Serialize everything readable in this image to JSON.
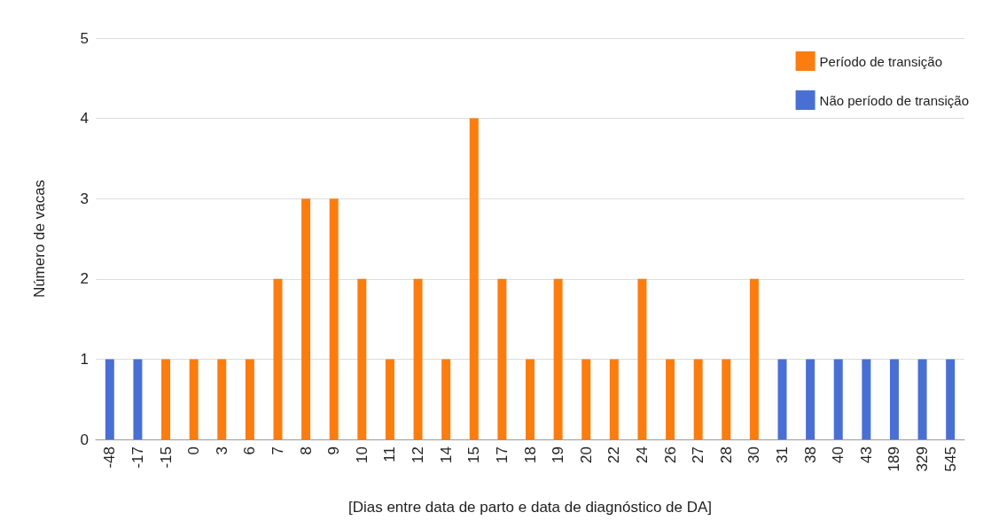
{
  "chart_data": {
    "type": "bar",
    "xlabel": "[Dias entre data de parto e data de diagnóstico de DA]",
    "ylabel": "Número de vacas",
    "categories": [
      "-48",
      "-17",
      "-15",
      "0",
      "3",
      "6",
      "7",
      "8",
      "9",
      "10",
      "11",
      "12",
      "14",
      "15",
      "17",
      "18",
      "19",
      "20",
      "22",
      "24",
      "26",
      "27",
      "28",
      "30",
      "31",
      "38",
      "40",
      "43",
      "189",
      "329",
      "545"
    ],
    "series": [
      {
        "name": "Período de transição",
        "color": "#fb7d10",
        "values": [
          null,
          null,
          1,
          1,
          1,
          1,
          2,
          3,
          3,
          2,
          1,
          2,
          1,
          4,
          2,
          1,
          2,
          1,
          1,
          2,
          1,
          1,
          1,
          2,
          null,
          null,
          null,
          null,
          null,
          null,
          null
        ]
      },
      {
        "name": "Não período de transição",
        "color": "#4a6fd4",
        "values": [
          1,
          1,
          null,
          null,
          null,
          null,
          null,
          null,
          null,
          null,
          null,
          null,
          null,
          null,
          null,
          null,
          null,
          null,
          null,
          null,
          null,
          null,
          null,
          null,
          1,
          1,
          1,
          1,
          1,
          1,
          1
        ]
      }
    ],
    "stacked": true,
    "ylim": [
      0,
      5
    ],
    "yticks": [
      0,
      1,
      2,
      3,
      4,
      5
    ],
    "grid": "y",
    "legend": "top right"
  }
}
